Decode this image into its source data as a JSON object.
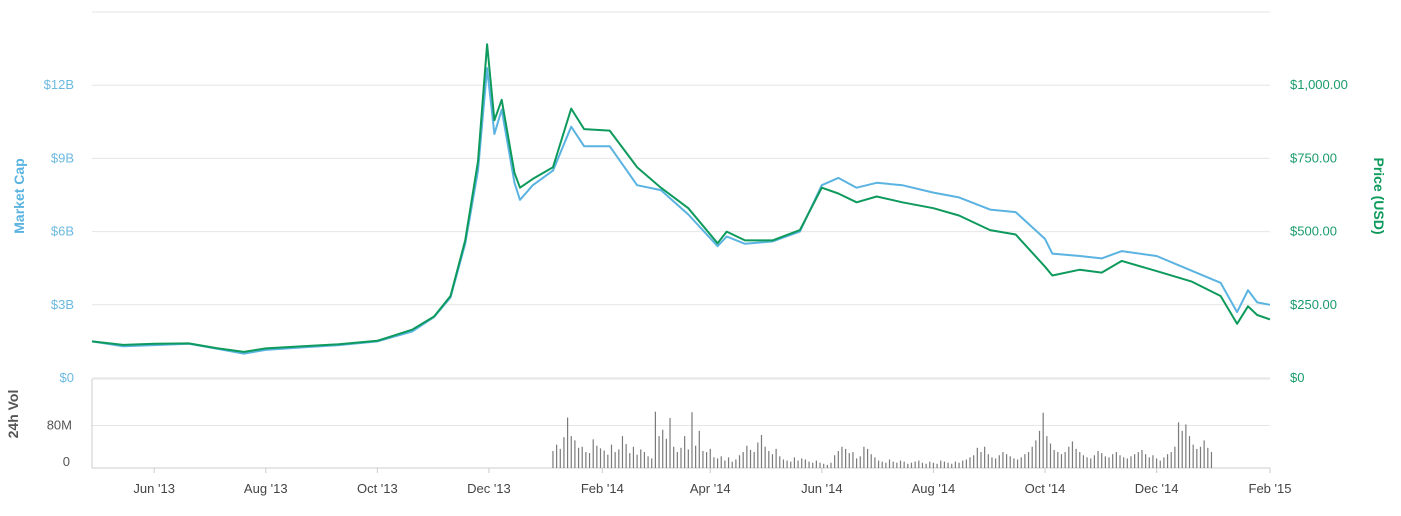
{
  "chart_data": {
    "type": "line",
    "x": [
      "2013-04-28",
      "2013-05-15",
      "2013-06-01",
      "2013-06-20",
      "2013-07-05",
      "2013-07-20",
      "2013-08-01",
      "2013-08-20",
      "2013-09-10",
      "2013-10-01",
      "2013-10-20",
      "2013-11-01",
      "2013-11-10",
      "2013-11-18",
      "2013-11-25",
      "2013-11-30",
      "2013-12-04",
      "2013-12-08",
      "2013-12-15",
      "2013-12-18",
      "2013-12-25",
      "2014-01-05",
      "2014-01-15",
      "2014-01-22",
      "2014-02-05",
      "2014-02-20",
      "2014-03-05",
      "2014-03-20",
      "2014-04-05",
      "2014-04-10",
      "2014-04-20",
      "2014-05-05",
      "2014-05-20",
      "2014-06-01",
      "2014-06-10",
      "2014-06-20",
      "2014-07-01",
      "2014-07-15",
      "2014-08-01",
      "2014-08-15",
      "2014-09-01",
      "2014-09-15",
      "2014-10-01",
      "2014-10-05",
      "2014-10-20",
      "2014-11-01",
      "2014-11-12",
      "2014-12-01",
      "2014-12-20",
      "2015-01-05",
      "2015-01-14",
      "2015-01-20",
      "2015-01-25",
      "2015-02-01"
    ],
    "series": [
      {
        "name": "Market Cap",
        "axis": "left",
        "color": "#5ab3e0",
        "values": [
          1.5,
          1.3,
          1.35,
          1.4,
          1.2,
          1.0,
          1.15,
          1.25,
          1.35,
          1.5,
          1.9,
          2.5,
          3.3,
          5.5,
          8.5,
          12.7,
          10.0,
          11.0,
          8.0,
          7.3,
          7.9,
          8.5,
          10.3,
          9.5,
          9.5,
          7.9,
          7.7,
          6.7,
          5.4,
          5.8,
          5.5,
          5.6,
          6.0,
          7.9,
          8.2,
          7.8,
          8.0,
          7.9,
          7.6,
          7.4,
          6.9,
          6.8,
          5.7,
          5.1,
          5.0,
          4.9,
          5.2,
          5.0,
          4.4,
          3.9,
          2.7,
          3.6,
          3.1,
          3.0
        ]
      },
      {
        "name": "Price (USD)",
        "axis": "right",
        "color": "#0e9a5c",
        "values": [
          125,
          113,
          117,
          118,
          102,
          89,
          101,
          108,
          115,
          127,
          165,
          210,
          280,
          470,
          740,
          1140,
          880,
          950,
          700,
          650,
          680,
          720,
          920,
          850,
          845,
          720,
          650,
          580,
          460,
          500,
          470,
          470,
          505,
          650,
          630,
          600,
          620,
          600,
          580,
          555,
          505,
          490,
          380,
          350,
          370,
          360,
          400,
          365,
          330,
          280,
          185,
          245,
          215,
          200
        ]
      }
    ],
    "volume": {
      "name": "24h Vol",
      "start": "2014-01-05",
      "values": [
        32,
        44,
        36,
        58,
        95,
        60,
        52,
        38,
        40,
        30,
        28,
        54,
        42,
        37,
        33,
        25,
        44,
        30,
        35,
        60,
        45,
        28,
        40,
        25,
        35,
        30,
        22,
        18,
        106,
        60,
        72,
        55,
        94,
        40,
        30,
        38,
        60,
        35,
        105,
        42,
        70,
        32,
        30,
        36,
        20,
        18,
        22,
        14,
        20,
        12,
        16,
        24,
        30,
        42,
        34,
        30,
        48,
        62,
        40,
        32,
        26,
        36,
        22,
        16,
        14,
        12,
        20,
        14,
        18,
        16,
        12,
        10,
        14,
        10,
        8,
        6,
        10,
        24,
        32,
        40,
        36,
        28,
        30,
        18,
        22,
        40,
        36,
        26,
        20,
        14,
        12,
        10,
        16,
        12,
        10,
        14,
        12,
        8,
        10,
        12,
        14,
        10,
        8,
        12,
        10,
        8,
        14,
        12,
        10,
        8,
        12,
        10,
        14,
        16,
        20,
        24,
        38,
        30,
        40,
        26,
        20,
        18,
        24,
        30,
        26,
        22,
        18,
        16,
        20,
        26,
        30,
        40,
        52,
        70,
        104,
        60,
        46,
        34,
        30,
        26,
        30,
        40,
        50,
        36,
        30,
        24,
        20,
        18,
        24,
        32,
        28,
        22,
        20,
        26,
        30,
        24,
        20,
        18,
        22,
        26,
        30,
        34,
        26,
        20,
        24,
        18,
        14,
        20,
        26,
        30,
        40,
        86,
        70,
        82,
        60,
        44,
        36,
        40,
        52,
        38,
        30
      ]
    },
    "xticks": [
      "Jun '13",
      "Aug '13",
      "Oct '13",
      "Dec '13",
      "Feb '14",
      "Apr '14",
      "Jun '14",
      "Aug '14",
      "Oct '14",
      "Dec '14",
      "Feb '15"
    ],
    "yticks_left": [
      "$0",
      "$3B",
      "$6B",
      "$9B",
      "$12B"
    ],
    "yticks_right": [
      "$0",
      "$250.00",
      "$500.00",
      "$750.00",
      "$1,000.00"
    ],
    "yticks_vol": [
      "0",
      "80M"
    ],
    "ylabel_left": "Market Cap",
    "ylabel_right": "Price (USD)",
    "ylabel_vol": "24h Vol",
    "ylim_left": [
      0,
      15
    ],
    "ylim_right": [
      0,
      1250
    ],
    "ylim_vol": [
      0,
      160
    ],
    "legend": "none",
    "grid": true
  }
}
